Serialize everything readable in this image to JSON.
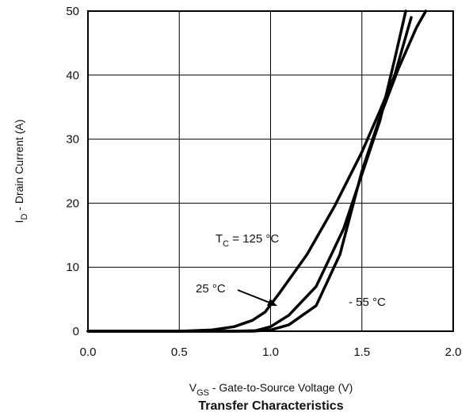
{
  "chart_data": {
    "type": "line",
    "title": "Transfer Characteristics",
    "xlabel": {
      "main": "V",
      "sub": "GS",
      "rest": "  -  Gate-to-Source Voltage (V)"
    },
    "ylabel": {
      "main": "I",
      "sub": "D",
      "rest": "  -  Drain Current (A)"
    },
    "xlim": [
      0.0,
      2.0
    ],
    "ylim": [
      0,
      50
    ],
    "x_ticks": [
      "0.0",
      "0.5",
      "1.0",
      "1.5",
      "2.0"
    ],
    "y_ticks": [
      "0",
      "10",
      "20",
      "30",
      "40",
      "50"
    ],
    "x_tick_values": [
      0.0,
      0.5,
      1.0,
      1.5,
      2.0
    ],
    "y_tick_values": [
      0,
      10,
      20,
      30,
      40,
      50
    ],
    "grid": true,
    "series": [
      {
        "id": "t125",
        "x": [
          0.0,
          0.5,
          0.68,
          0.8,
          0.9,
          0.97,
          1.05,
          1.2,
          1.35,
          1.5,
          1.6,
          1.68,
          1.77
        ],
        "y": [
          0,
          0,
          0.2,
          0.7,
          1.7,
          3.0,
          6.0,
          12.0,
          19.5,
          28.0,
          34.5,
          40.0,
          49.0
        ]
      },
      {
        "id": "t25",
        "x": [
          0.0,
          0.8,
          0.92,
          1.0,
          1.1,
          1.25,
          1.4,
          1.5,
          1.6,
          1.68,
          1.74
        ],
        "y": [
          0,
          0,
          0.1,
          0.7,
          2.5,
          7.0,
          16.0,
          24.5,
          33.0,
          42.5,
          50.0
        ]
      },
      {
        "id": "tm55",
        "x": [
          0.0,
          0.9,
          1.0,
          1.1,
          1.25,
          1.38,
          1.5,
          1.6,
          1.7,
          1.8,
          1.85
        ],
        "y": [
          0,
          0,
          0.2,
          1.0,
          4.0,
          12.0,
          25.0,
          33.5,
          41.0,
          47.5,
          50.0
        ]
      }
    ],
    "annotations": {
      "t125": {
        "prefix": "T",
        "sub": "C",
        "rest": " = 125 °C"
      },
      "t25": "25 °C",
      "tm55": "- 55 °C"
    }
  }
}
